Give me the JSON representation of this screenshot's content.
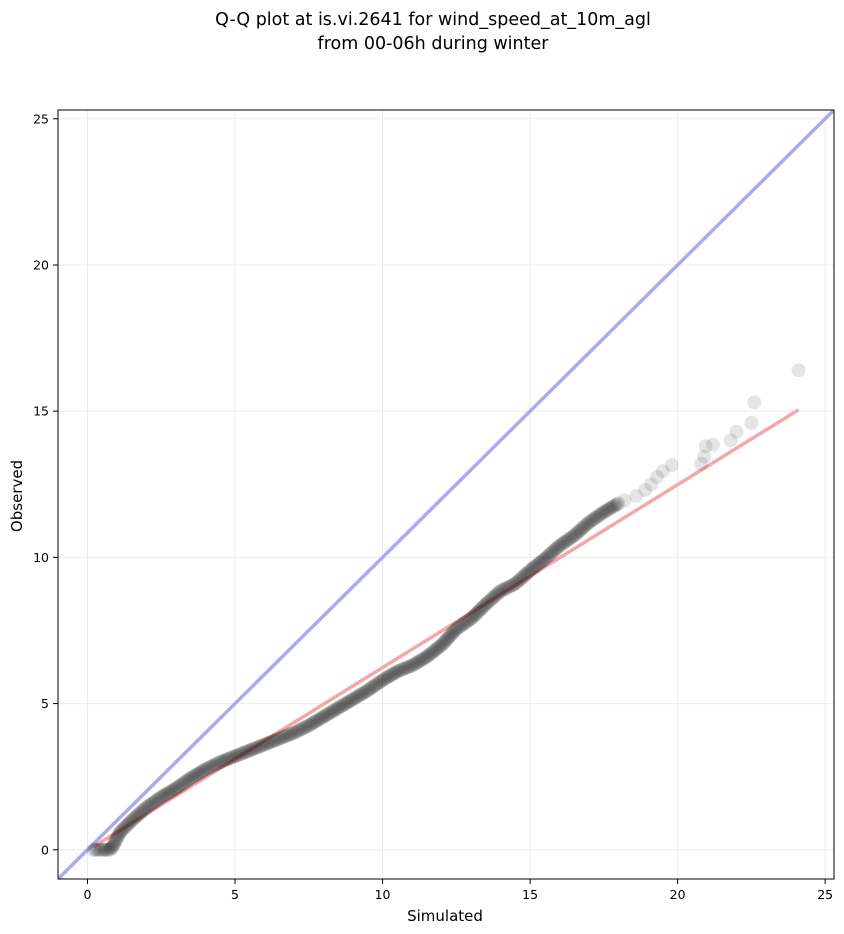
{
  "chart_data": {
    "type": "scatter",
    "title_line1": "Q-Q plot at is.vi.2641 for wind_speed_at_10m_agl",
    "title_line2": "from 00-06h during winter",
    "xlabel": "Simulated",
    "ylabel": "Observed",
    "xlim": [
      -1,
      25.3
    ],
    "ylim": [
      -1,
      25.3
    ],
    "xticks": [
      0,
      5,
      10,
      15,
      20,
      25
    ],
    "yticks": [
      0,
      5,
      10,
      15,
      20,
      25
    ],
    "grid": true,
    "colors": {
      "points": "#000000",
      "identity_line": "#aaaaf0",
      "fit_line": "#f4a8a8",
      "frame": "#000000",
      "grid": "#ececec"
    },
    "identity_line": [
      [
        -1,
        -1
      ],
      [
        25.3,
        25.3
      ]
    ],
    "fit_line": [
      [
        0.2,
        0.1
      ],
      [
        24.1,
        15.05
      ]
    ],
    "points_curve": [
      [
        0.2,
        0.0
      ],
      [
        0.6,
        0.0
      ],
      [
        0.75,
        0.0
      ],
      [
        0.85,
        0.1
      ],
      [
        0.95,
        0.3
      ],
      [
        1.1,
        0.6
      ],
      [
        1.5,
        1.0
      ],
      [
        2.0,
        1.45
      ],
      [
        2.5,
        1.8
      ],
      [
        3.0,
        2.1
      ],
      [
        3.5,
        2.45
      ],
      [
        4.0,
        2.75
      ],
      [
        4.5,
        3.0
      ],
      [
        5.0,
        3.2
      ],
      [
        5.5,
        3.4
      ],
      [
        6.0,
        3.6
      ],
      [
        6.5,
        3.8
      ],
      [
        7.0,
        4.0
      ],
      [
        7.5,
        4.25
      ],
      [
        8.0,
        4.55
      ],
      [
        8.5,
        4.85
      ],
      [
        9.0,
        5.15
      ],
      [
        9.5,
        5.45
      ],
      [
        10.0,
        5.8
      ],
      [
        10.5,
        6.1
      ],
      [
        11.0,
        6.3
      ],
      [
        11.5,
        6.6
      ],
      [
        12.0,
        7.0
      ],
      [
        12.5,
        7.55
      ],
      [
        13.0,
        7.9
      ],
      [
        13.5,
        8.4
      ],
      [
        14.0,
        8.85
      ],
      [
        14.5,
        9.1
      ],
      [
        15.0,
        9.55
      ],
      [
        15.5,
        9.95
      ],
      [
        16.0,
        10.4
      ],
      [
        16.5,
        10.75
      ],
      [
        17.0,
        11.2
      ],
      [
        17.5,
        11.55
      ],
      [
        18.0,
        11.85
      ]
    ],
    "tail_points": [
      [
        18.2,
        11.95
      ],
      [
        18.6,
        12.1
      ],
      [
        18.9,
        12.3
      ],
      [
        19.1,
        12.5
      ],
      [
        19.3,
        12.75
      ],
      [
        19.5,
        12.95
      ],
      [
        19.8,
        13.15
      ],
      [
        20.8,
        13.2
      ],
      [
        20.9,
        13.45
      ],
      [
        20.95,
        13.8
      ],
      [
        21.2,
        13.85
      ],
      [
        21.8,
        14.0
      ],
      [
        22.0,
        14.3
      ],
      [
        22.5,
        14.6
      ],
      [
        22.6,
        15.3
      ],
      [
        24.1,
        16.4
      ]
    ]
  }
}
